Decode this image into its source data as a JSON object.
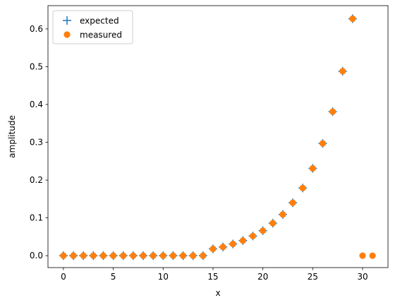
{
  "chart_data": {
    "type": "scatter",
    "xlabel": "x",
    "ylabel": "amplitude",
    "xlim": [
      -1.55,
      32.55
    ],
    "ylim": [
      -0.0315,
      0.6615
    ],
    "xticks": [
      0,
      5,
      10,
      15,
      20,
      25,
      30
    ],
    "yticks": [
      0.0,
      0.1,
      0.2,
      0.3,
      0.4,
      0.5,
      0.6
    ],
    "ytick_labels": [
      "0.0",
      "0.1",
      "0.2",
      "0.3",
      "0.4",
      "0.5",
      "0.6"
    ],
    "grid": false,
    "legend_position": "top-left",
    "series": [
      {
        "name": "expected",
        "marker": "plus",
        "color": "#1f77b4",
        "x": [
          0,
          1,
          2,
          3,
          4,
          5,
          6,
          7,
          8,
          9,
          10,
          11,
          12,
          13,
          14,
          15,
          16,
          17,
          18,
          19,
          20,
          21,
          22,
          23,
          24,
          25,
          26,
          27,
          28,
          29
        ],
        "y": [
          0,
          0,
          0,
          0,
          0,
          0,
          0,
          0,
          0,
          0,
          0,
          0,
          0,
          0,
          0,
          0.018,
          0.023,
          0.031,
          0.04,
          0.052,
          0.066,
          0.086,
          0.109,
          0.14,
          0.179,
          0.231,
          0.297,
          0.381,
          0.488,
          0.627
        ]
      },
      {
        "name": "measured",
        "marker": "circle",
        "color": "#ff7f0e",
        "x": [
          0,
          1,
          2,
          3,
          4,
          5,
          6,
          7,
          8,
          9,
          10,
          11,
          12,
          13,
          14,
          15,
          16,
          17,
          18,
          19,
          20,
          21,
          22,
          23,
          24,
          25,
          26,
          27,
          28,
          29,
          30,
          31
        ],
        "y": [
          0,
          0,
          0,
          0,
          0,
          0,
          0,
          0,
          0,
          0,
          0,
          0,
          0,
          0,
          0,
          0.018,
          0.023,
          0.031,
          0.04,
          0.052,
          0.066,
          0.086,
          0.109,
          0.14,
          0.179,
          0.231,
          0.297,
          0.381,
          0.488,
          0.627,
          0,
          0
        ]
      }
    ]
  }
}
